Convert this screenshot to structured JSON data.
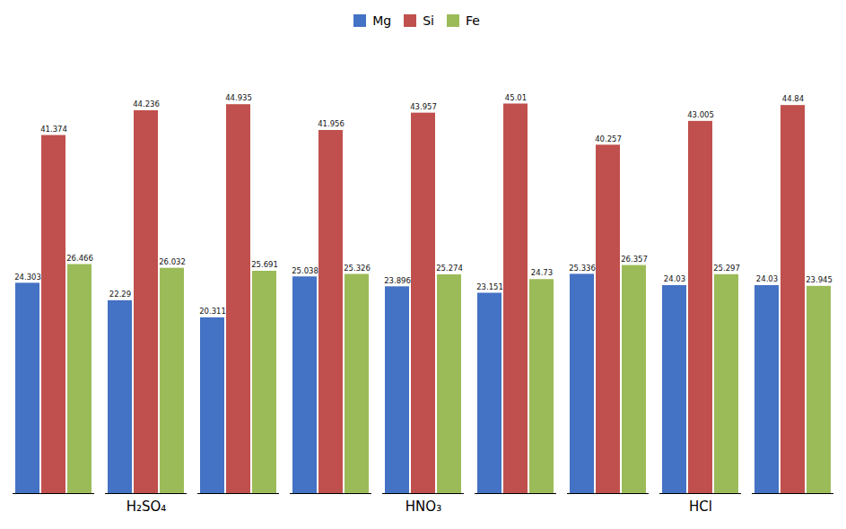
{
  "chart_data": {
    "type": "bar",
    "categories": [
      null,
      "H₂SO₄",
      null,
      null,
      "HNO₃",
      null,
      null,
      "HCl",
      null
    ],
    "series": [
      {
        "name": "Mg",
        "color": "#4472C4",
        "values": [
          24.303,
          22.29,
          20.311,
          25.038,
          23.896,
          23.151,
          25.336,
          24.03,
          24.03
        ]
      },
      {
        "name": "Si",
        "color": "#C0504D",
        "values": [
          41.374,
          44.236,
          44.935,
          41.956,
          43.957,
          45.01,
          40.257,
          43.005,
          44.84
        ]
      },
      {
        "name": "Fe",
        "color": "#9BBB59",
        "values": [
          26.466,
          26.032,
          25.691,
          25.326,
          25.274,
          24.73,
          26.357,
          25.297,
          23.945
        ]
      }
    ],
    "ylim": [
      0,
      52
    ],
    "data_labels": true,
    "tick_labels": "x",
    "legend": "top",
    "grid": false
  }
}
